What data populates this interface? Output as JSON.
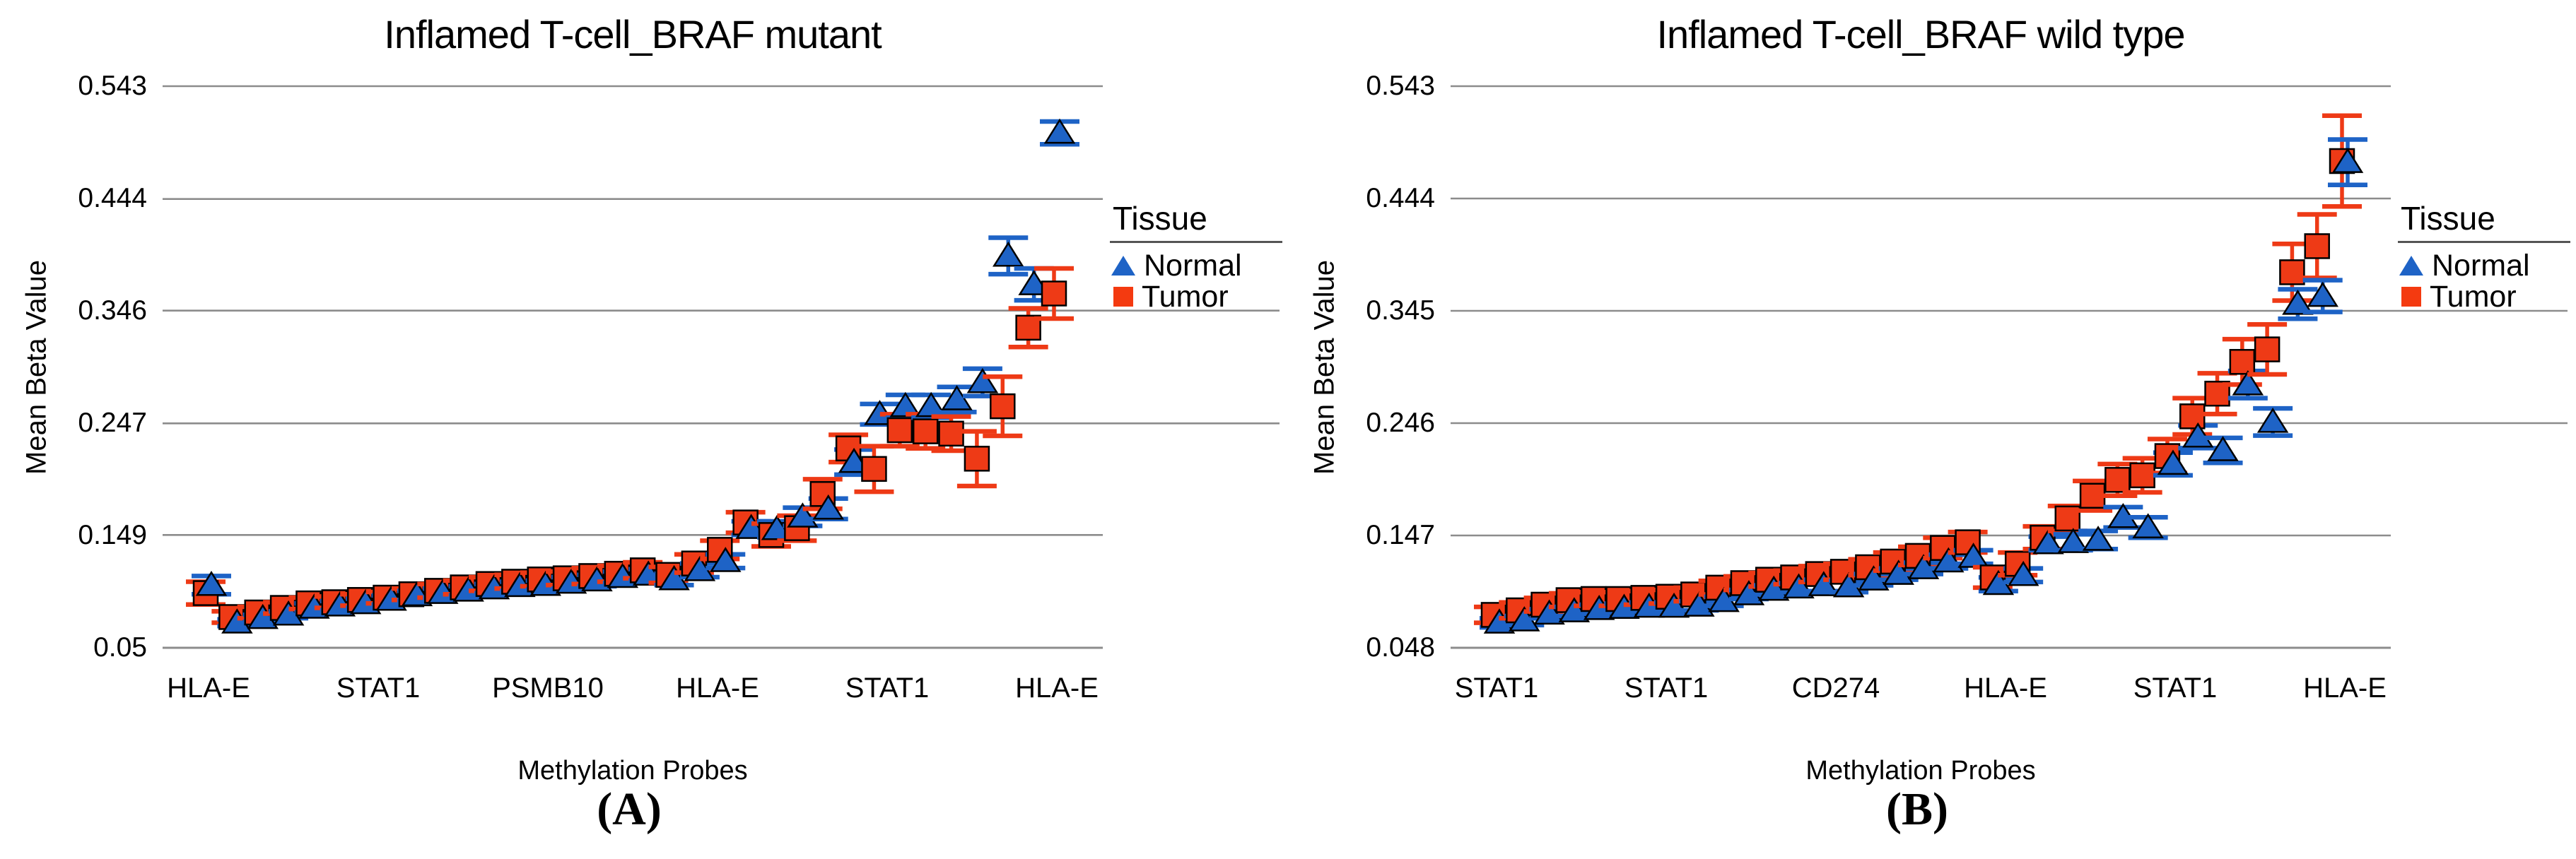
{
  "figure": {
    "panels": [
      {
        "title": "Inflamed T-cell_BRAF mutant",
        "y_axis_title": "Mean Beta Value",
        "x_axis_title": "Methylation Probes",
        "panel_label": "(A)",
        "y_ticks": [
          "0.543",
          "0.444",
          "0.346",
          "0.247",
          "0.149",
          "0.05"
        ],
        "x_ticks": [
          "HLA-E",
          "STAT1",
          "PSMB10",
          "HLA-E",
          "STAT1",
          "HLA-E"
        ],
        "legend": {
          "title": "Tissue",
          "items": [
            {
              "label": "Normal",
              "marker": "triangle",
              "color": "#1E63C6"
            },
            {
              "label": "Tumor",
              "marker": "square",
              "color": "#F43A10"
            }
          ]
        }
      },
      {
        "title": "Inflamed T-cell_BRAF wild type",
        "y_axis_title": "Mean Beta Value",
        "x_axis_title": "Methylation Probes",
        "panel_label": "(B)",
        "y_ticks": [
          "0.543",
          "0.444",
          "0.345",
          "0.246",
          "0.147",
          "0.048"
        ],
        "x_ticks": [
          "STAT1",
          "STAT1",
          "CD274",
          "HLA-E",
          "STAT1",
          "HLA-E"
        ],
        "legend": {
          "title": "Tissue",
          "items": [
            {
              "label": "Normal",
              "marker": "triangle",
              "color": "#1E63C6"
            },
            {
              "label": "Tumor",
              "marker": "square",
              "color": "#F43A10"
            }
          ]
        }
      }
    ],
    "colors": {
      "normal_blue": "#1E63C6",
      "tumor_red": "#EE3A16",
      "gridline_gray": "#8C8C8C"
    }
  },
  "chart_data": [
    {
      "type": "scatter",
      "title": "Inflamed T-cell_BRAF mutant",
      "xlabel": "Methylation Probes",
      "ylabel": "Mean Beta Value",
      "x_tick_labels": [
        "HLA-E",
        "STAT1",
        "PSMB10",
        "HLA-E",
        "STAT1",
        "HLA-E"
      ],
      "ylim": [
        0.05,
        0.543
      ],
      "y_gridlines": [
        0.543,
        0.444,
        0.346,
        0.247,
        0.149,
        0.05
      ],
      "legend_title": "Tissue",
      "legend_position": "right",
      "grid": true,
      "series": [
        {
          "name": "Normal",
          "marker": "triangle",
          "color": "#1E63C6",
          "values": [
            0.105,
            0.072,
            0.076,
            0.079,
            0.085,
            0.087,
            0.089,
            0.092,
            0.096,
            0.098,
            0.1,
            0.102,
            0.104,
            0.105,
            0.107,
            0.109,
            0.112,
            0.114,
            0.11,
            0.118,
            0.126,
            0.155,
            0.154,
            0.165,
            0.172,
            0.213,
            0.255,
            0.262,
            0.262,
            0.268,
            0.283,
            0.394,
            0.369,
            0.502
          ],
          "errors": [
            0.008,
            0.003,
            0.003,
            0.003,
            0.004,
            0.004,
            0.004,
            0.004,
            0.004,
            0.004,
            0.004,
            0.004,
            0.004,
            0.004,
            0.005,
            0.005,
            0.005,
            0.005,
            0.005,
            0.006,
            0.006,
            0.006,
            0.007,
            0.008,
            0.009,
            0.011,
            0.009,
            0.01,
            0.01,
            0.011,
            0.012,
            0.016,
            0.014,
            0.01
          ]
        },
        {
          "name": "Tumor",
          "marker": "square",
          "color": "#EE3A16",
          "values": [
            0.098,
            0.077,
            0.081,
            0.085,
            0.089,
            0.09,
            0.092,
            0.094,
            0.097,
            0.1,
            0.103,
            0.106,
            0.108,
            0.11,
            0.111,
            0.113,
            0.115,
            0.118,
            0.114,
            0.124,
            0.136,
            0.16,
            0.149,
            0.155,
            0.185,
            0.225,
            0.207,
            0.241,
            0.24,
            0.238,
            0.216,
            0.262,
            0.331,
            0.361
          ],
          "errors": [
            0.01,
            0.005,
            0.005,
            0.005,
            0.005,
            0.005,
            0.005,
            0.005,
            0.005,
            0.006,
            0.006,
            0.006,
            0.006,
            0.006,
            0.006,
            0.007,
            0.007,
            0.007,
            0.007,
            0.008,
            0.008,
            0.009,
            0.01,
            0.011,
            0.013,
            0.012,
            0.02,
            0.014,
            0.015,
            0.015,
            0.024,
            0.026,
            0.017,
            0.022
          ]
        }
      ]
    },
    {
      "type": "scatter",
      "title": "Inflamed T-cell_BRAF wild type",
      "xlabel": "Methylation Probes",
      "ylabel": "Mean Beta Value",
      "x_tick_labels": [
        "STAT1",
        "STAT1",
        "CD274",
        "HLA-E",
        "STAT1",
        "HLA-E"
      ],
      "ylim": [
        0.048,
        0.543
      ],
      "y_gridlines": [
        0.543,
        0.444,
        0.345,
        0.246,
        0.147,
        0.048
      ],
      "legend_title": "Tissue",
      "legend_position": "right",
      "grid": true,
      "series": [
        {
          "name": "Normal",
          "marker": "triangle",
          "color": "#1E63C6",
          "values": [
            0.07,
            0.072,
            0.078,
            0.08,
            0.082,
            0.083,
            0.084,
            0.084,
            0.085,
            0.089,
            0.095,
            0.099,
            0.101,
            0.103,
            0.102,
            0.108,
            0.113,
            0.118,
            0.124,
            0.128,
            0.104,
            0.112,
            0.14,
            0.141,
            0.143,
            0.163,
            0.154,
            0.21,
            0.234,
            0.222,
            0.28,
            0.247,
            0.351,
            0.358,
            0.476
          ],
          "errors": [
            0.004,
            0.004,
            0.004,
            0.004,
            0.004,
            0.004,
            0.004,
            0.004,
            0.004,
            0.004,
            0.004,
            0.004,
            0.004,
            0.005,
            0.005,
            0.005,
            0.005,
            0.005,
            0.006,
            0.006,
            0.006,
            0.006,
            0.006,
            0.007,
            0.008,
            0.009,
            0.009,
            0.01,
            0.01,
            0.011,
            0.012,
            0.012,
            0.013,
            0.014,
            0.02
          ]
        },
        {
          "name": "Tumor",
          "marker": "square",
          "color": "#EE3A16",
          "values": [
            0.077,
            0.081,
            0.086,
            0.09,
            0.091,
            0.091,
            0.092,
            0.093,
            0.095,
            0.101,
            0.105,
            0.108,
            0.11,
            0.113,
            0.115,
            0.119,
            0.124,
            0.129,
            0.136,
            0.141,
            0.11,
            0.122,
            0.145,
            0.162,
            0.182,
            0.196,
            0.2,
            0.217,
            0.252,
            0.272,
            0.3,
            0.311,
            0.379,
            0.402,
            0.477
          ],
          "errors": [
            0.007,
            0.007,
            0.006,
            0.006,
            0.006,
            0.006,
            0.006,
            0.006,
            0.006,
            0.006,
            0.006,
            0.006,
            0.006,
            0.007,
            0.007,
            0.007,
            0.008,
            0.008,
            0.009,
            0.009,
            0.009,
            0.01,
            0.01,
            0.011,
            0.013,
            0.014,
            0.015,
            0.015,
            0.016,
            0.018,
            0.02,
            0.022,
            0.025,
            0.028,
            0.04
          ]
        }
      ]
    }
  ]
}
